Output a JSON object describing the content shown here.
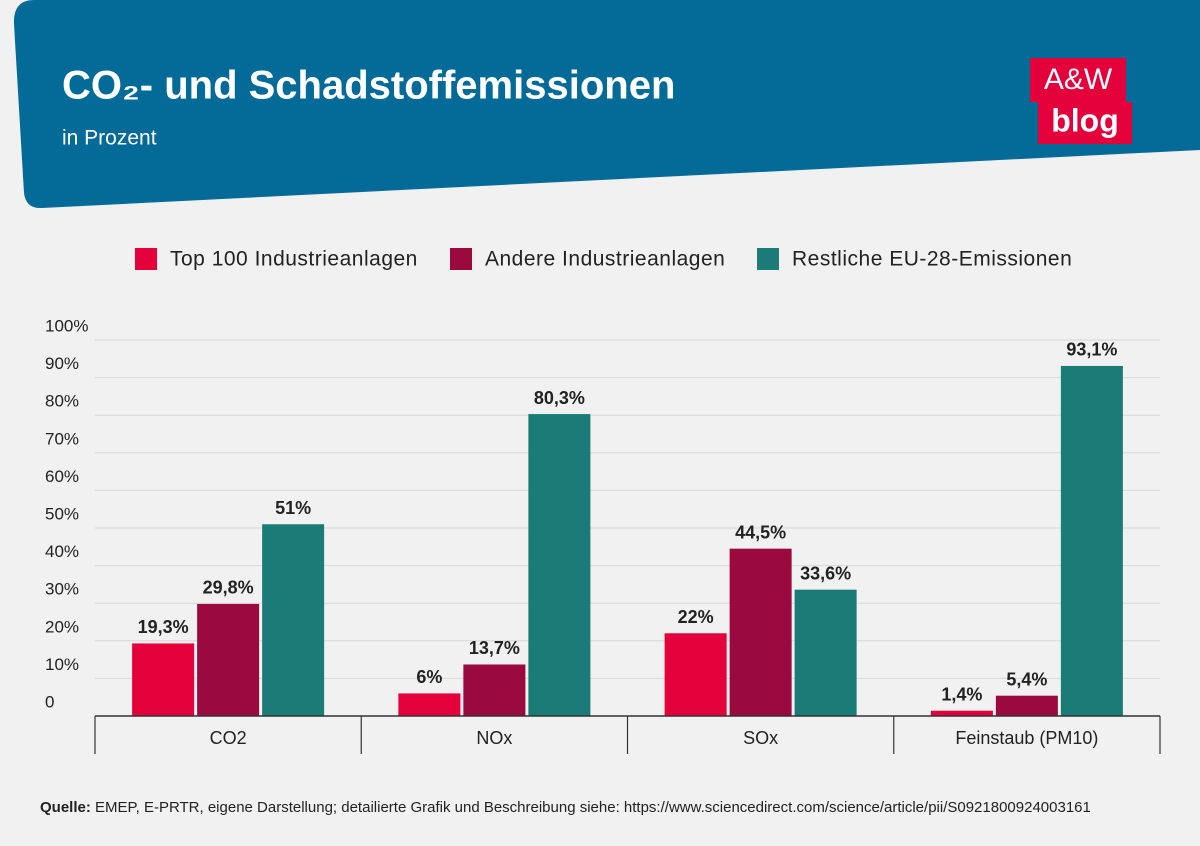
{
  "chart_data": {
    "type": "bar",
    "title": "CO₂- und Schadstoffemissionen",
    "subtitle": "in Prozent",
    "logo": {
      "line1": "A&W",
      "line2": "blog"
    },
    "categories": [
      "CO2",
      "NOx",
      "SOx",
      "Feinstaub (PM10)"
    ],
    "series": [
      {
        "name": "Top 100 Industrieanlagen",
        "color": "#e4003a",
        "values": [
          19.3,
          6,
          22,
          1.4
        ],
        "value_labels": [
          "19,3%",
          "6%",
          "22%",
          "1,4%"
        ]
      },
      {
        "name": "Andere Industrieanlagen",
        "color": "#9b0a3e",
        "values": [
          29.8,
          13.7,
          44.5,
          5.4
        ],
        "value_labels": [
          "29,8%",
          "13,7%",
          "44,5%",
          "5,4%"
        ]
      },
      {
        "name": "Restliche EU-28-Emissionen",
        "color": "#1b7b77",
        "values": [
          51,
          80.3,
          33.6,
          93.1
        ],
        "value_labels": [
          "51%",
          "80,3%",
          "33,6%",
          "93,1%"
        ]
      }
    ],
    "ylim": [
      0,
      100
    ],
    "yticks": [
      0,
      {
        "value": 10,
        "label": "10%"
      },
      {
        "value": 20,
        "label": "20%"
      },
      {
        "value": 30,
        "label": "30%"
      },
      {
        "value": 40,
        "label": "40%"
      },
      {
        "value": 50,
        "label": "50%"
      },
      {
        "value": 60,
        "label": "60%"
      },
      {
        "value": 70,
        "label": "70%"
      },
      {
        "value": 80,
        "label": "80%"
      },
      {
        "value": 90,
        "label": "90%"
      },
      {
        "value": 100,
        "label": "100%"
      }
    ],
    "grid": true,
    "legend": "top",
    "source_label": "Quelle:",
    "source": " EMEP, E-PRTR, eigene Darstellung; detailierte Grafik und Beschreibung siehe: https://www.sciencedirect.com/science/article/pii/S0921800924003161"
  }
}
